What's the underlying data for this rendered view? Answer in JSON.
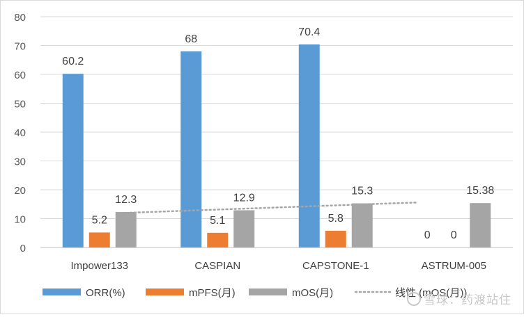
{
  "chart_data": {
    "type": "bar",
    "title": "",
    "xlabel": "",
    "ylabel": "",
    "ylim": [
      0,
      80
    ],
    "yticks": [
      0,
      10,
      20,
      30,
      40,
      50,
      60,
      70,
      80
    ],
    "grid": true,
    "legend_position": "bottom",
    "categories": [
      "Impower133",
      "CASPIAN",
      "CAPSTONE-1",
      "ASTRUM-005"
    ],
    "series": [
      {
        "name": "ORR(%)",
        "color": "#5b9bd5",
        "values": [
          60.2,
          68,
          70.4,
          null
        ],
        "labels": [
          "60.2",
          "68",
          "70.4",
          "0"
        ]
      },
      {
        "name": "mPFS(月)",
        "color": "#ed7d31",
        "values": [
          5.2,
          5.1,
          5.8,
          null
        ],
        "labels": [
          "5.2",
          "5.1",
          "5.8",
          "0"
        ]
      },
      {
        "name": "mOS(月)",
        "color": "#a5a5a5",
        "values": [
          12.3,
          12.9,
          15.3,
          15.38
        ],
        "labels": [
          "12.3",
          "12.9",
          "15.3",
          "15.38"
        ]
      }
    ],
    "trendline": {
      "name": "线性 (mOS(月))",
      "color": "#a5a5a5",
      "style": "dotted",
      "of_series": "mOS(月)",
      "start_value": 12.0,
      "end_value": 15.6
    }
  },
  "watermark": "雪球：药渡站住"
}
